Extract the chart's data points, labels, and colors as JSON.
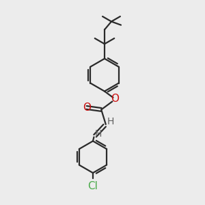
{
  "bg_color": "#ececec",
  "bond_color": "#2a2a2a",
  "oxygen_color": "#cc1111",
  "chlorine_color": "#4aaa4a",
  "h_color": "#606060",
  "line_width": 1.6,
  "font_size": 10,
  "fig_width": 3.0,
  "fig_height": 3.0,
  "dpi": 100,
  "xlim": [
    0,
    10
  ],
  "ylim": [
    0,
    10
  ]
}
